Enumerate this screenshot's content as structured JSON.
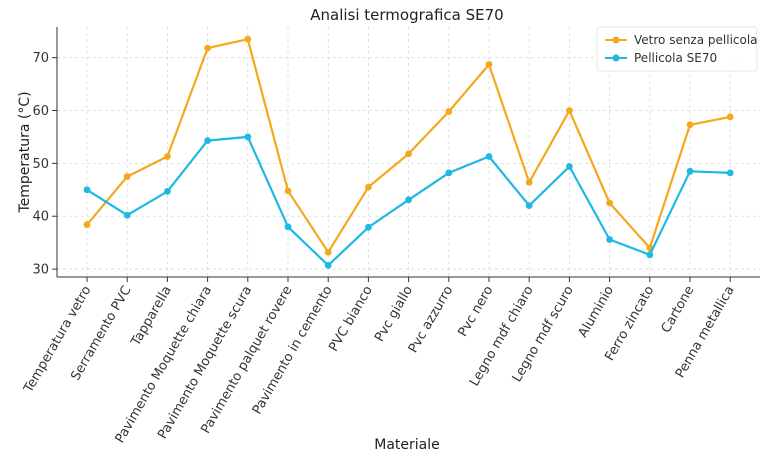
{
  "chart_data": {
    "type": "line",
    "title": "Analisi termografica SE70",
    "xlabel": "Materiale",
    "ylabel": "Temperatura (°C)",
    "ylim": [
      28.5,
      75.8
    ],
    "yticks": [
      30,
      40,
      50,
      60,
      70
    ],
    "grid": true,
    "legend_position": "top-right",
    "categories": [
      "Temperatura vetro",
      "Serramento PVC",
      "Tapparella",
      "Pavimento Moquette chiara",
      "Pavimento Moquette scura",
      "Pavimento palquet rovere",
      "Pavimento in cemento",
      "PVC bianco",
      "Pvc giallo",
      "Pvc azzurro",
      "Pvc nero",
      "Legno mdf chiaro",
      "Legno mdf scuro",
      "Aluminio",
      "Ferro zincato",
      "Cartone",
      "Penna metallica"
    ],
    "series": [
      {
        "name": "Vetro senza pellicola",
        "color": "#f4a81d",
        "values": [
          38.4,
          47.5,
          51.3,
          71.8,
          73.5,
          44.8,
          33.2,
          45.5,
          51.8,
          59.8,
          68.7,
          46.4,
          60.0,
          42.5,
          34.0,
          57.3,
          58.8
        ]
      },
      {
        "name": "Pellicola SE70",
        "color": "#1fb8e3",
        "values": [
          45.0,
          40.2,
          44.7,
          54.3,
          55.0,
          38.0,
          30.7,
          37.9,
          43.1,
          48.2,
          51.3,
          42.0,
          49.4,
          35.6,
          32.7,
          48.5,
          48.2
        ]
      }
    ]
  }
}
